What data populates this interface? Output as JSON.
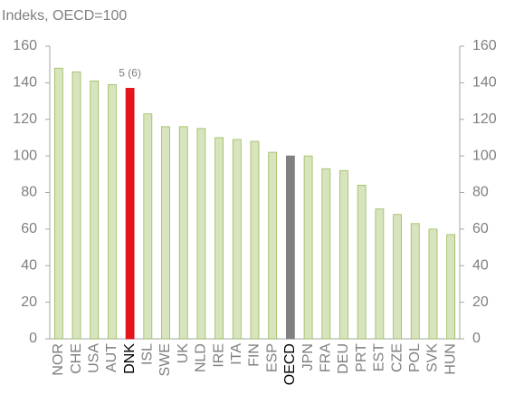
{
  "chart_data": {
    "type": "bar",
    "y_axis_label": "Indeks, OECD=100",
    "categories": [
      "NOR",
      "CHE",
      "USA",
      "AUT",
      "DNK",
      "ISL",
      "SWE",
      "UK",
      "NLD",
      "IRE",
      "ITA",
      "FIN",
      "ESP",
      "OECD",
      "JPN",
      "FRA",
      "DEU",
      "PRT",
      "EST",
      "CZE",
      "POL",
      "SVK",
      "HUN"
    ],
    "values": [
      148,
      146,
      141,
      139,
      137,
      123,
      116,
      116,
      115,
      110,
      109,
      108,
      102,
      100,
      100,
      93,
      92,
      84,
      71,
      68,
      63,
      60,
      57
    ],
    "color": "#d7e4bd",
    "colors": [
      "#d7e4bd",
      "#d7e4bd",
      "#d7e4bd",
      "#d7e4bd",
      "#e3141b",
      "#d7e4bd",
      "#d7e4bd",
      "#d7e4bd",
      "#d7e4bd",
      "#d7e4bd",
      "#d7e4bd",
      "#d7e4bd",
      "#d7e4bd",
      "#808080",
      "#d7e4bd",
      "#d7e4bd",
      "#d7e4bd",
      "#d7e4bd",
      "#d7e4bd",
      "#d7e4bd",
      "#d7e4bd",
      "#d7e4bd",
      "#d7e4bd"
    ],
    "annotations": [
      {
        "text": "5 (6)",
        "x": "DNK"
      }
    ],
    "ylim": [
      0,
      160
    ],
    "yticks": [
      0,
      20,
      40,
      60,
      80,
      100,
      120,
      140,
      160
    ],
    "y2lim": [
      0,
      160
    ],
    "y2ticks": [
      0,
      20,
      40,
      60,
      80,
      100,
      120,
      140,
      160
    ],
    "grid": false
  }
}
